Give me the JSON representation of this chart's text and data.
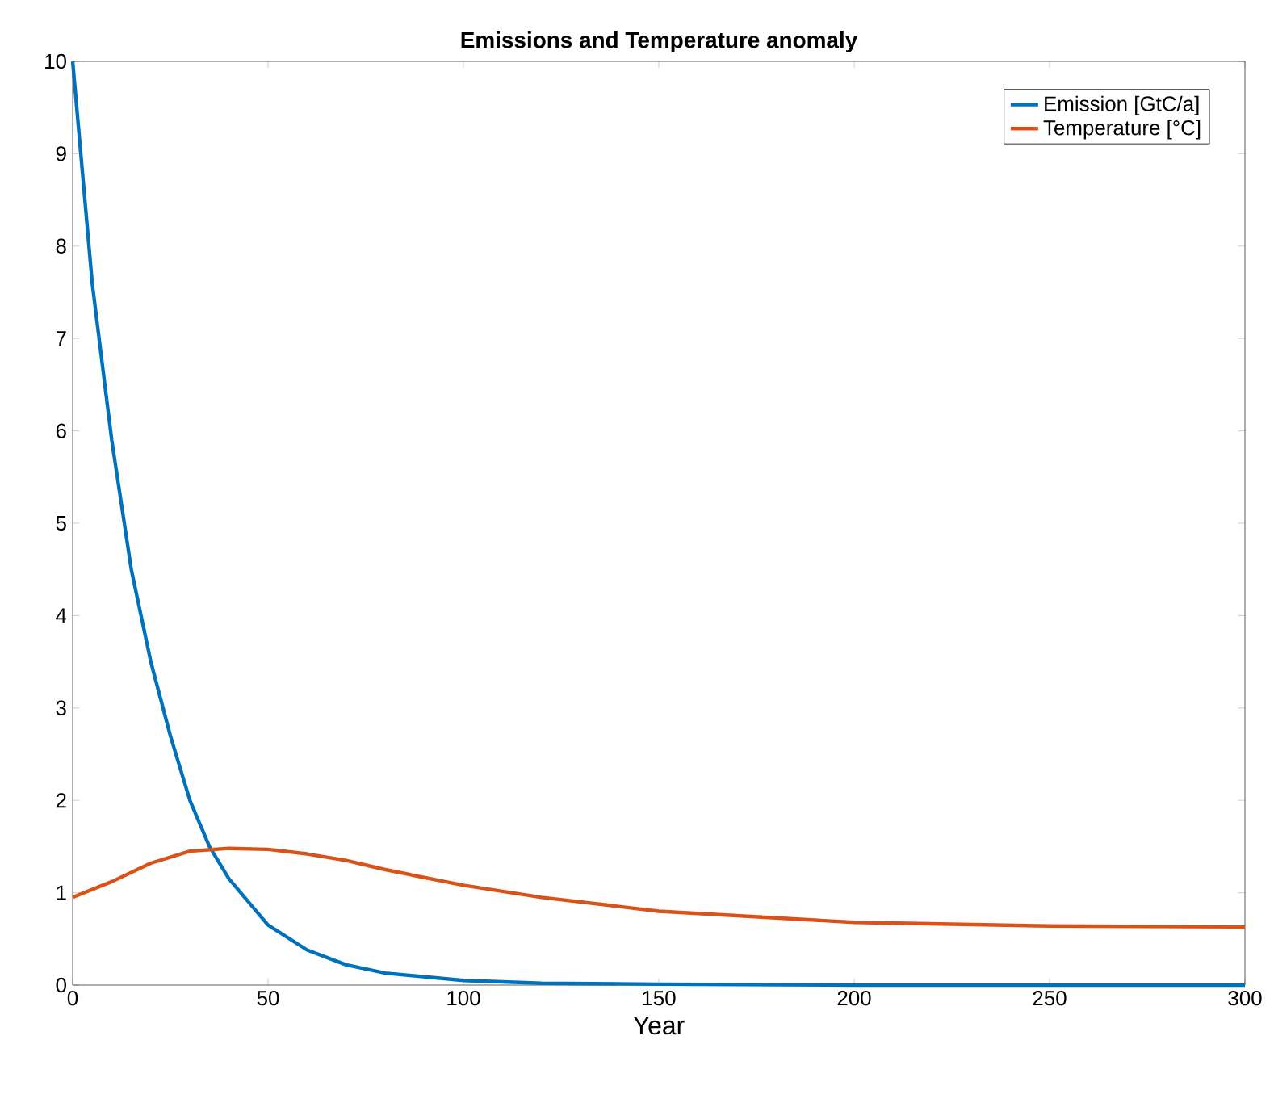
{
  "chart_data": {
    "type": "line",
    "title": "Emissions and Temperature anomaly",
    "xlabel": "Year",
    "xlim": [
      0,
      300
    ],
    "xticks": [
      0,
      50,
      100,
      150,
      200,
      250,
      300
    ],
    "ylim": [
      0,
      10
    ],
    "yticks": [
      0,
      1,
      2,
      3,
      4,
      5,
      6,
      7,
      8,
      9,
      10
    ],
    "grid": false,
    "legend": "top right",
    "line_style": "solid",
    "marker": "none",
    "series": [
      {
        "name": "Emission [GtC/a]",
        "color": "#0072bd",
        "x": [
          0,
          5,
          10,
          15,
          20,
          25,
          30,
          35,
          40,
          50,
          60,
          70,
          80,
          100,
          120,
          150,
          200,
          300
        ],
        "values": [
          10,
          7.6,
          5.9,
          4.5,
          3.5,
          2.7,
          2.0,
          1.5,
          1.15,
          0.65,
          0.38,
          0.22,
          0.13,
          0.05,
          0.02,
          0.01,
          0,
          0
        ]
      },
      {
        "name": "Temperature [°C]",
        "color": "#d95319",
        "x": [
          0,
          10,
          20,
          30,
          40,
          50,
          60,
          70,
          80,
          100,
          120,
          150,
          200,
          250,
          300
        ],
        "values": [
          0.95,
          1.12,
          1.32,
          1.45,
          1.48,
          1.47,
          1.42,
          1.35,
          1.25,
          1.08,
          0.95,
          0.8,
          0.68,
          0.64,
          0.63
        ]
      }
    ]
  }
}
